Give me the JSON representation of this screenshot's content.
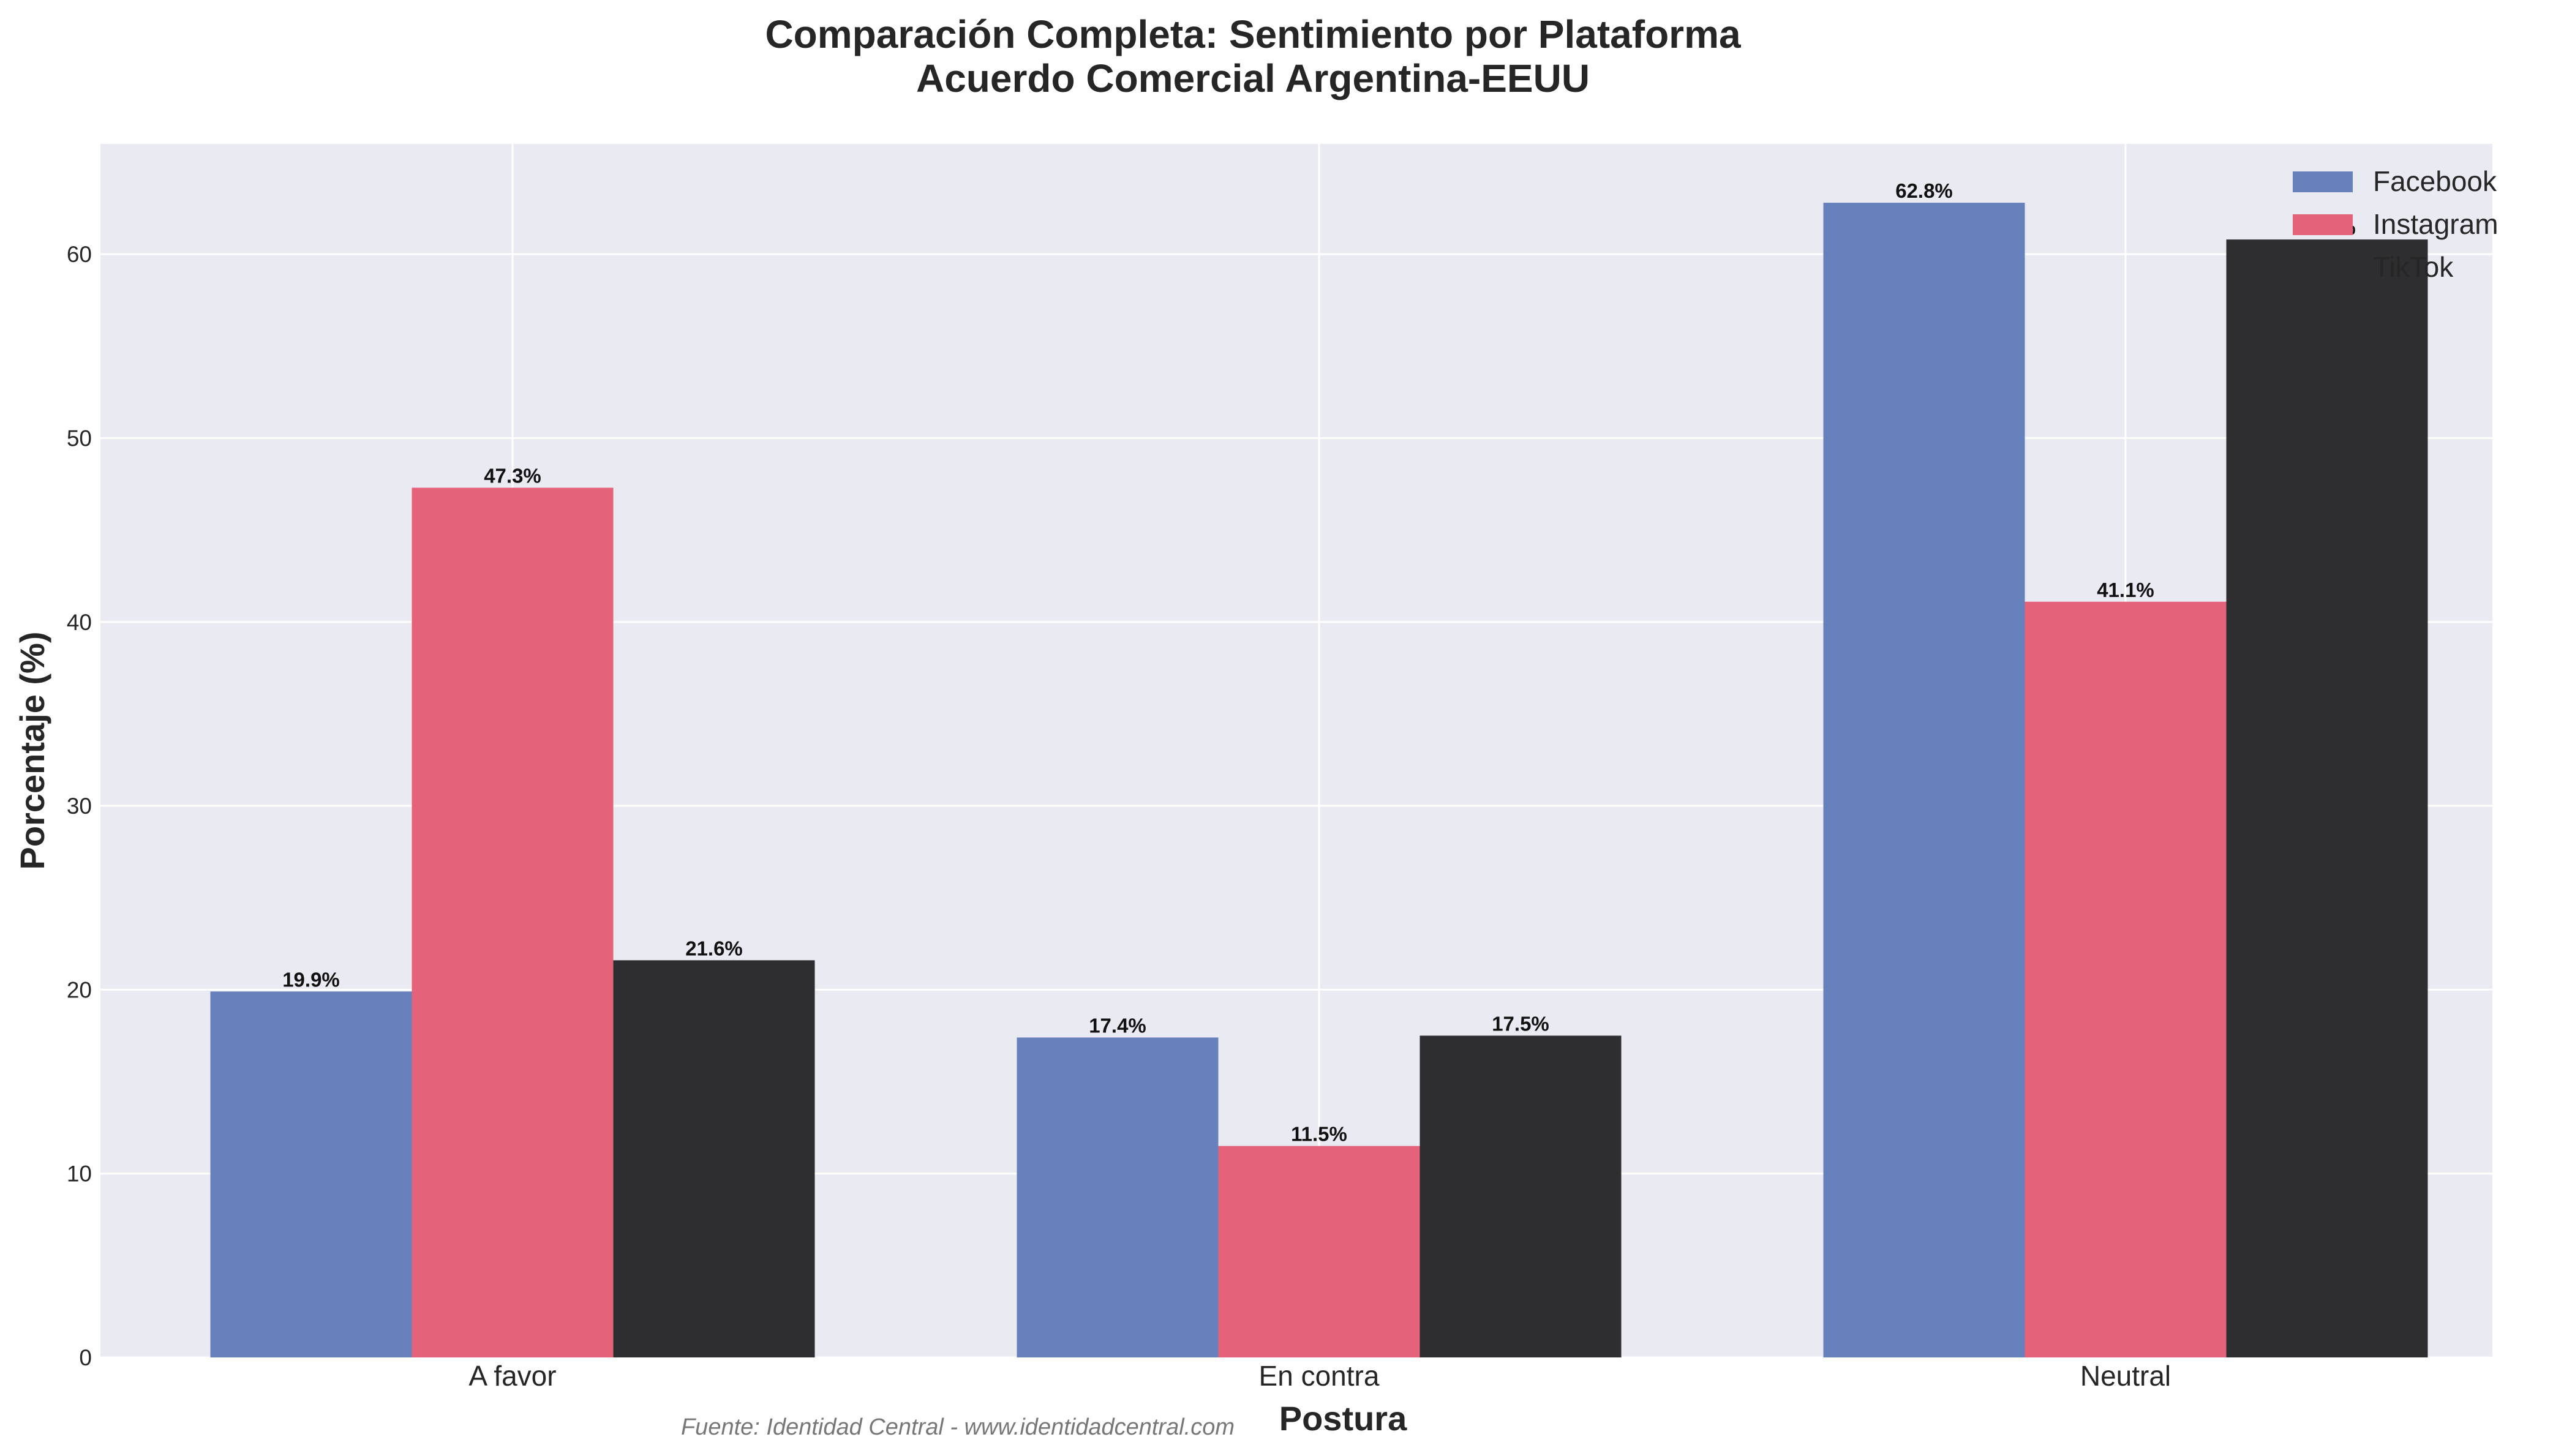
{
  "chart_data": {
    "type": "bar",
    "title_lines": [
      "Comparación Completa: Sentimiento por Plataforma",
      "Acuerdo Comercial Argentina-EEUU"
    ],
    "xlabel": "Postura",
    "ylabel": "Porcentaje (%)",
    "categories": [
      "A favor",
      "En contra",
      "Neutral"
    ],
    "series": [
      {
        "name": "Facebook",
        "color": "#6681BC",
        "values": [
          19.9,
          17.4,
          62.8
        ],
        "labels": [
          "19.9%",
          "17.4%",
          "62.8%"
        ]
      },
      {
        "name": "Instagram",
        "color": "#E5637A",
        "values": [
          47.3,
          11.5,
          41.1
        ],
        "labels": [
          "47.3%",
          "11.5%",
          "41.1%"
        ]
      },
      {
        "name": "TikTok",
        "color": "#2E2E30",
        "values": [
          21.6,
          17.5,
          60.8
        ],
        "labels": [
          "21.6%",
          "17.5%",
          "60.8%"
        ]
      }
    ],
    "ylim": [
      0,
      66
    ],
    "yticks": [
      0,
      10,
      20,
      30,
      40,
      50,
      60
    ],
    "grid": true,
    "legend": "top-right",
    "source": "Fuente: Identidad Central - www.identidadcentral.com",
    "colors": {
      "background": "#EAEAF2",
      "grid": "#FFFFFF"
    }
  }
}
